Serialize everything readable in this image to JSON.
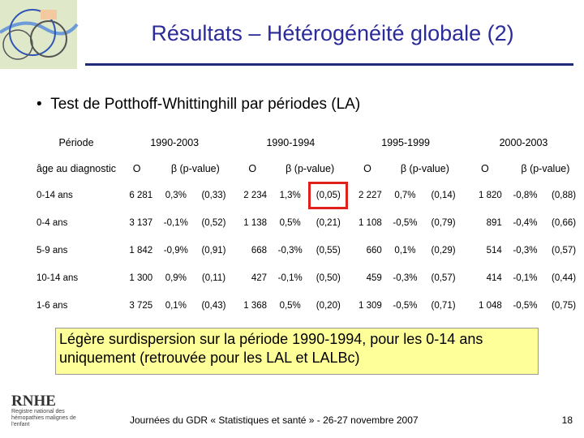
{
  "header": {
    "title": "Résultats – Hétérogénéité globale (2)"
  },
  "bullet": "Test de Potthoff-Whittinghill par périodes (LA)",
  "table": {
    "period_label": "Période",
    "age_label": "âge au diagnostic",
    "periods": [
      {
        "label": "1990-2003",
        "columns": [
          "O",
          "β (p-value)"
        ]
      },
      {
        "label": "1990-1994",
        "columns": [
          "O",
          "β (p-value)"
        ]
      },
      {
        "label": "1995-1999",
        "columns": [
          "O",
          "β (p-value)"
        ]
      },
      {
        "label": "2000-2003",
        "columns": [
          "O",
          "β (p-value)"
        ]
      }
    ],
    "rows": [
      {
        "age": "0-14 ans",
        "cells": [
          "6 281",
          "0,3%",
          "(0,33)",
          "2 234",
          "1,3%",
          "(0,05)",
          "2 227",
          "0,7%",
          "(0,14)",
          "1 820",
          "-0,8%",
          "(0,88)"
        ]
      },
      {
        "age": "0-4 ans",
        "cells": [
          "3 137",
          "-0,1%",
          "(0,52)",
          "1 138",
          "0,5%",
          "(0,21)",
          "1 108",
          "-0,5%",
          "(0,79)",
          "891",
          "-0,4%",
          "(0,66)"
        ]
      },
      {
        "age": "5-9 ans",
        "cells": [
          "1 842",
          "-0,9%",
          "(0,91)",
          "668",
          "-0,3%",
          "(0,55)",
          "660",
          "0,1%",
          "(0,29)",
          "514",
          "-0,3%",
          "(0,57)"
        ]
      },
      {
        "age": "10-14 ans",
        "cells": [
          "1 300",
          "0,9%",
          "(0,11)",
          "427",
          "-0,1%",
          "(0,50)",
          "459",
          "-0,3%",
          "(0,57)",
          "414",
          "-0,1%",
          "(0,44)"
        ]
      },
      {
        "age": "1-6 ans",
        "cells": [
          "3 725",
          "0,1%",
          "(0,43)",
          "1 368",
          "0,5%",
          "(0,20)",
          "1 309",
          "-0,5%",
          "(0,71)",
          "1 048",
          "-0,5%",
          "(0,75)"
        ]
      }
    ]
  },
  "note": "Légère surdispersion sur la période 1990-1994, pour les 0-14 ans uniquement (retrouvée pour les LAL et LALBc)",
  "logo": {
    "name": "RNHE",
    "subtitle": "Registre national des hémopathies malignes de l'enfant"
  },
  "footer": "Journées du GDR « Statistiques et santé » - 26-27 novembre 2007",
  "page_number": "18"
}
